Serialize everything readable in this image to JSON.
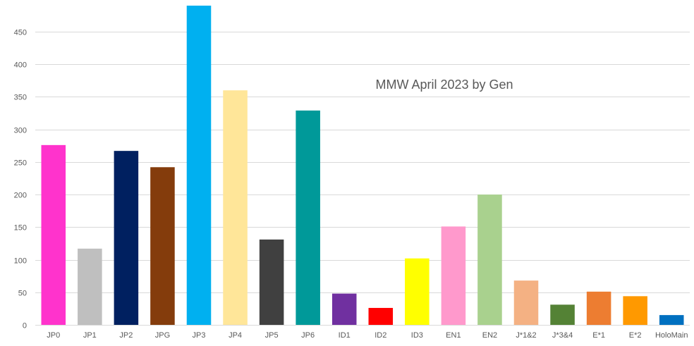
{
  "chart_data": {
    "type": "bar",
    "title": "MMW April 2023 by Gen",
    "xlabel": "",
    "ylabel": "",
    "ylim": [
      0,
      490
    ],
    "yticks": [
      0,
      50,
      100,
      150,
      200,
      250,
      300,
      350,
      400,
      450
    ],
    "grid": true,
    "legend": "none",
    "categories": [
      "JP0",
      "JP1",
      "JP2",
      "JPG",
      "JP3",
      "JP4",
      "JP5",
      "JP6",
      "ID1",
      "ID2",
      "ID3",
      "EN1",
      "EN2",
      "J*1&2",
      "J*3&4",
      "E*1",
      "E*2",
      "HoloMain"
    ],
    "values": [
      276,
      117,
      267,
      242,
      490,
      360,
      131,
      329,
      48,
      26,
      102,
      151,
      200,
      68,
      31,
      51,
      44,
      15
    ],
    "colors": [
      "#ff33cc",
      "#bfbfbf",
      "#002060",
      "#843c0c",
      "#00b0f0",
      "#ffe699",
      "#404040",
      "#009999",
      "#7030a0",
      "#ff0000",
      "#ffff00",
      "#ff99cc",
      "#a9d18e",
      "#f4b183",
      "#548235",
      "#ed7d31",
      "#ff9900",
      "#0070c0"
    ]
  }
}
